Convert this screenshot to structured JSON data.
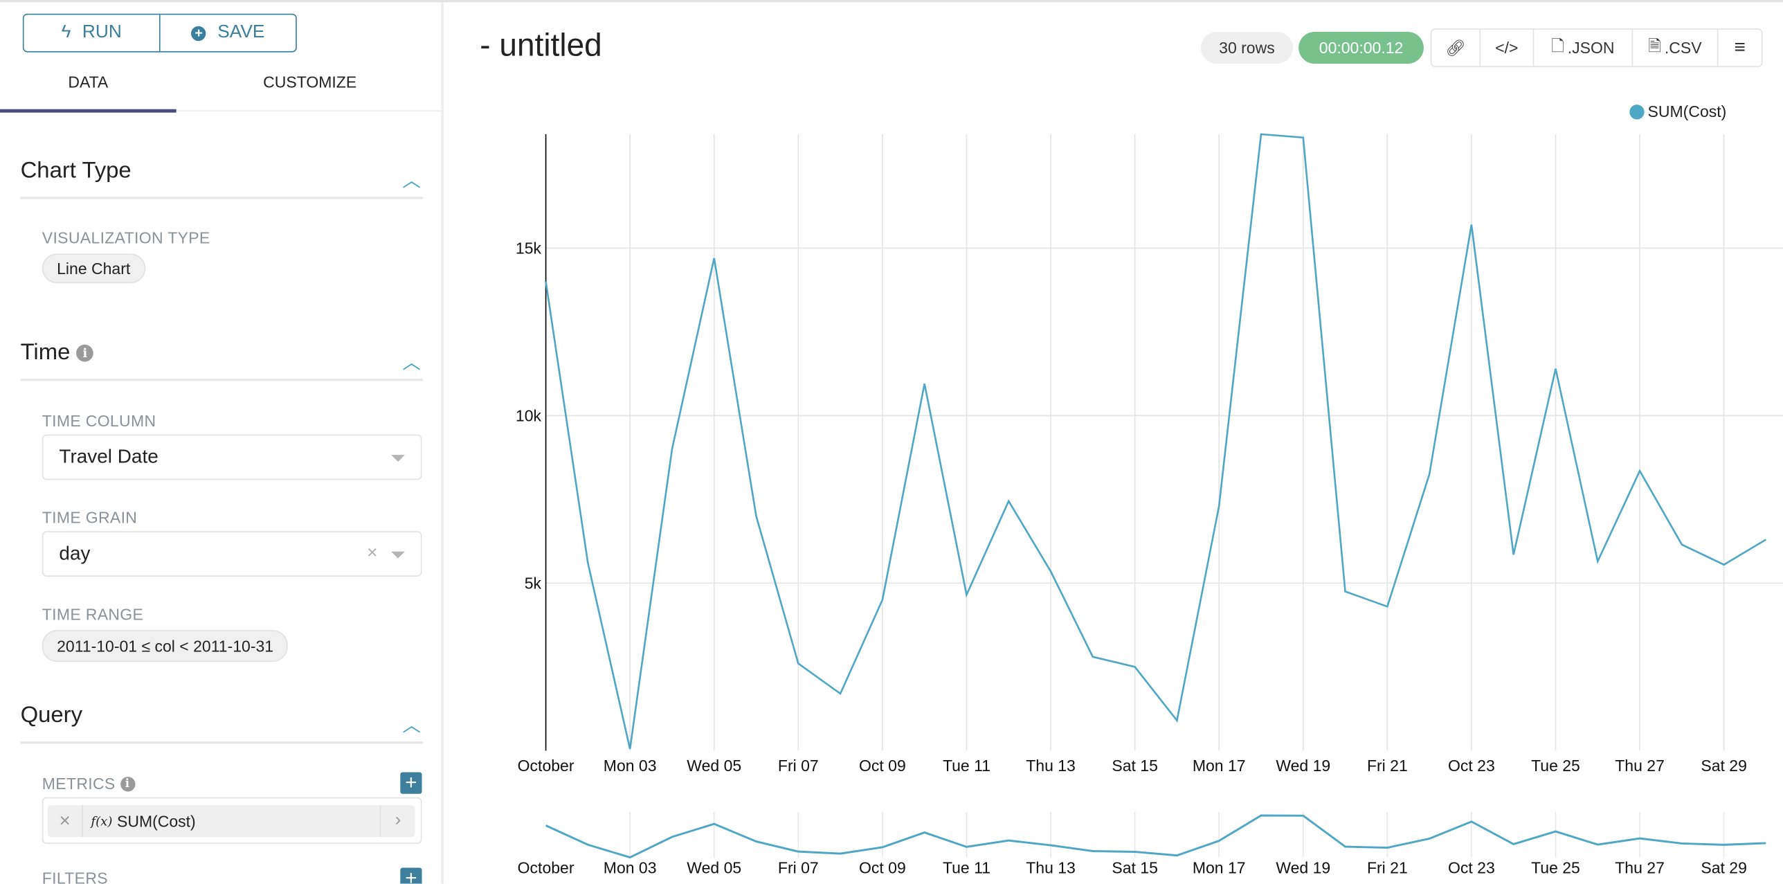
{
  "sidebar": {
    "run_label": "RUN",
    "save_label": "SAVE",
    "tabs": [
      {
        "label": "DATA",
        "active": true
      },
      {
        "label": "CUSTOMIZE",
        "active": false
      }
    ],
    "chart_type": {
      "heading": "Chart Type",
      "viz_label": "VISUALIZATION TYPE",
      "viz_value": "Line Chart"
    },
    "time": {
      "heading": "Time",
      "column_label": "TIME COLUMN",
      "column_value": "Travel Date",
      "grain_label": "TIME GRAIN",
      "grain_value": "day",
      "range_label": "TIME RANGE",
      "range_value": "2011-10-01 ≤ col < 2011-10-31"
    },
    "query": {
      "heading": "Query",
      "metrics_label": "METRICS",
      "metric_fx": "f(x)",
      "metric_value": "SUM(Cost)",
      "filters_label": "FILTERS"
    }
  },
  "header": {
    "title": "- untitled",
    "rows_badge": "30 rows",
    "timer_badge": "00:00:00.12",
    "json_label": ".JSON",
    "csv_label": ".CSV"
  },
  "colors": {
    "accent": "#3c7f9a",
    "series": "#4fa7c6",
    "timer": "#78c08c",
    "tab_underline": "#484d7a"
  },
  "chart_data": {
    "type": "line",
    "legend": {
      "entries": [
        "SUM(Cost)"
      ],
      "placement": "top-right"
    },
    "series": [
      {
        "name": "SUM(Cost)",
        "x": [
          "2011-10-01",
          "2011-10-02",
          "2011-10-03",
          "2011-10-04",
          "2011-10-05",
          "2011-10-06",
          "2011-10-07",
          "2011-10-08",
          "2011-10-09",
          "2011-10-10",
          "2011-10-11",
          "2011-10-12",
          "2011-10-13",
          "2011-10-14",
          "2011-10-15",
          "2011-10-16",
          "2011-10-17",
          "2011-10-18",
          "2011-10-19",
          "2011-10-20",
          "2011-10-21",
          "2011-10-22",
          "2011-10-23",
          "2011-10-24",
          "2011-10-25",
          "2011-10-26",
          "2011-10-27",
          "2011-10-28",
          "2011-10-29",
          "2011-10-30"
        ],
        "values": [
          14000,
          5600,
          50,
          9000,
          14700,
          7000,
          2600,
          1700,
          4500,
          10950,
          4650,
          7450,
          5350,
          2800,
          2500,
          900,
          7300,
          18400,
          18300,
          4750,
          4300,
          8250,
          15700,
          5850,
          11400,
          5650,
          8350,
          6150,
          5550,
          6300
        ]
      }
    ],
    "yticks": [
      {
        "value": 5000,
        "label": "5k"
      },
      {
        "value": 10000,
        "label": "10k"
      },
      {
        "value": 15000,
        "label": "15k"
      }
    ],
    "xticks": [
      {
        "date": "2011-10-01",
        "label": "October"
      },
      {
        "date": "2011-10-03",
        "label": "Mon 03"
      },
      {
        "date": "2011-10-05",
        "label": "Wed 05"
      },
      {
        "date": "2011-10-07",
        "label": "Fri 07"
      },
      {
        "date": "2011-10-09",
        "label": "Oct 09"
      },
      {
        "date": "2011-10-11",
        "label": "Tue 11"
      },
      {
        "date": "2011-10-13",
        "label": "Thu 13"
      },
      {
        "date": "2011-10-15",
        "label": "Sat 15"
      },
      {
        "date": "2011-10-17",
        "label": "Mon 17"
      },
      {
        "date": "2011-10-19",
        "label": "Wed 19"
      },
      {
        "date": "2011-10-21",
        "label": "Fri 21"
      },
      {
        "date": "2011-10-23",
        "label": "Oct 23"
      },
      {
        "date": "2011-10-25",
        "label": "Tue 25"
      },
      {
        "date": "2011-10-27",
        "label": "Thu 27"
      },
      {
        "date": "2011-10-29",
        "label": "Sat 29"
      }
    ],
    "ylim": [
      0,
      18400
    ],
    "grid": true,
    "brush": true
  }
}
